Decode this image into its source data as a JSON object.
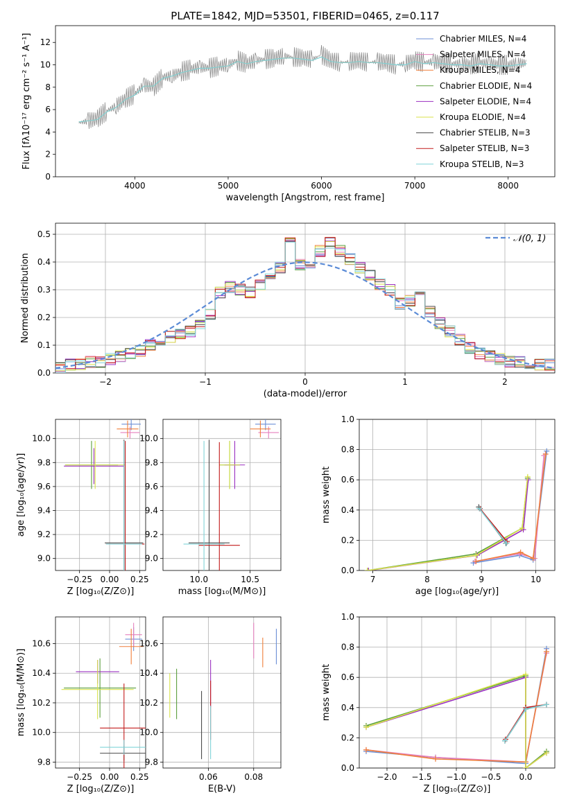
{
  "figure": {
    "title": "PLATE=1842, MJD=53501, FIBERID=0465, z=0.117"
  },
  "models": [
    {
      "name": "Chabrier MILES",
      "n": "4",
      "color": "#6b8fd6"
    },
    {
      "name": "Salpeter MILES",
      "n": "4",
      "color": "#e57fbd"
    },
    {
      "name": "Kroupa MILES",
      "n": "4",
      "color": "#f07f3a"
    },
    {
      "name": "Chabrier ELODIE",
      "n": "4",
      "color": "#5a9e3b"
    },
    {
      "name": "Salpeter ELODIE",
      "n": "4",
      "color": "#9a2fc0"
    },
    {
      "name": "Kroupa ELODIE",
      "n": "4",
      "color": "#d8e24a"
    },
    {
      "name": "Chabrier STELIB",
      "n": "3",
      "color": "#4a4a4a"
    },
    {
      "name": "Salpeter STELIB",
      "n": "3",
      "color": "#c21a1a"
    },
    {
      "name": "Kroupa STELIB",
      "n": "3",
      "color": "#7fd3d8"
    }
  ],
  "chart_data": [
    {
      "id": "spectrum",
      "type": "line",
      "xlabel": "wavelength [Angstrom, rest frame]",
      "ylabel": "Flux [fλ10⁻¹⁷ erg cm⁻² s⁻¹ A⁻¹]",
      "xlim": [
        3150,
        8500
      ],
      "ylim": [
        0,
        13.5
      ],
      "xticks": [
        "4000",
        "5000",
        "6000",
        "7000",
        "8000"
      ],
      "yticks": [
        "0",
        "2",
        "4",
        "6",
        "8",
        "10",
        "12"
      ],
      "legend_labels": [
        "Chabrier MILES, N_SSP=4",
        "Salpeter MILES, N_SSP=4",
        "Kroupa MILES, N_SSP=4",
        "Chabrier ELODIE, N_SSP=4",
        "Salpeter ELODIE, N_SSP=4",
        "Kroupa ELODIE, N_SSP=4",
        "Chabrier STELIB, N_SSP=3",
        "Salpeter STELIB, N_SSP=3",
        "Kroupa STELIB, N_SSP=3"
      ],
      "legend_position": "upper-right",
      "data_series": {
        "name": "data",
        "color": "#808080",
        "x": [
          3400,
          3500,
          3600,
          3700,
          3800,
          3900,
          4000,
          4100,
          4200,
          4300,
          4400,
          4500,
          4600,
          4700,
          4800,
          4900,
          5000,
          5100,
          5200,
          5300,
          5400,
          5500,
          5600,
          5700,
          5800,
          5900,
          6000,
          6100,
          6200,
          6300,
          6400,
          6500,
          6600,
          6700,
          6800,
          6900,
          7000,
          7100,
          7200,
          7300,
          7400,
          7500,
          7600,
          7700,
          7800,
          7900,
          8000,
          8100,
          8200
        ],
        "y": [
          4.8,
          5.0,
          5.2,
          5.9,
          6.3,
          7.0,
          7.4,
          8.2,
          8.0,
          8.9,
          9.0,
          9.4,
          9.6,
          9.8,
          9.7,
          9.9,
          10.0,
          10.4,
          10.1,
          10.4,
          10.5,
          10.6,
          10.8,
          10.7,
          10.6,
          10.5,
          10.9,
          10.4,
          10.2,
          10.3,
          10.4,
          10.2,
          10.3,
          10.2,
          10.0,
          10.1,
          10.4,
          10.2,
          10.3,
          10.2,
          10.1,
          10.1,
          10.0,
          10.2,
          10.1,
          10.0,
          10.0,
          10.1,
          10.2
        ]
      },
      "model_series": {
        "name": "models",
        "color": "#7fd3d8",
        "x": [
          3400,
          3500,
          3600,
          3700,
          3800,
          3900,
          4000,
          4100,
          4200,
          4300,
          4400,
          4500,
          4600,
          4700,
          4800,
          4900,
          5000,
          5100,
          5200,
          5300,
          5400,
          5500,
          5600,
          5700,
          5800,
          5900,
          6000,
          6100,
          6200,
          6300,
          6400,
          6500,
          6600,
          6700,
          6800,
          6900,
          7000,
          7100,
          7200,
          7300,
          7400,
          7500,
          7600,
          7700,
          7800,
          7900,
          8000,
          8100,
          8200
        ],
        "y": [
          4.9,
          5.0,
          5.1,
          5.8,
          6.2,
          6.9,
          7.3,
          8.1,
          8.1,
          8.8,
          9.0,
          9.3,
          9.5,
          9.7,
          9.7,
          9.8,
          9.9,
          10.3,
          10.1,
          10.3,
          10.4,
          10.5,
          10.6,
          10.6,
          10.5,
          10.4,
          10.7,
          10.3,
          10.2,
          10.2,
          10.3,
          10.2,
          10.2,
          10.1,
          10.0,
          10.0,
          10.3,
          10.1,
          10.2,
          10.1,
          10.0,
          10.0,
          9.9,
          10.1,
          10.0,
          9.9,
          9.9,
          10.0,
          10.1
        ]
      }
    },
    {
      "id": "residuals",
      "type": "histogram",
      "xlabel": "(data-model)/error",
      "ylabel": "Normed distribution",
      "xlim": [
        -2.5,
        2.5
      ],
      "ylim": [
        0,
        0.54
      ],
      "xticks": [
        "−2",
        "−1",
        "0",
        "1",
        "2"
      ],
      "yticks": [
        "0.0",
        "0.1",
        "0.2",
        "0.3",
        "0.4",
        "0.5"
      ],
      "legend_labels": [
        "𝒩(0, 1)"
      ],
      "legend_position": "upper-right",
      "bin_edges": [
        -2.5,
        -2.4,
        -2.3,
        -2.2,
        -2.1,
        -2.0,
        -1.9,
        -1.8,
        -1.7,
        -1.6,
        -1.5,
        -1.4,
        -1.3,
        -1.2,
        -1.1,
        -1.0,
        -0.9,
        -0.8,
        -0.7,
        -0.6,
        -0.5,
        -0.4,
        -0.3,
        -0.2,
        -0.1,
        0.0,
        0.1,
        0.2,
        0.3,
        0.4,
        0.5,
        0.6,
        0.7,
        0.8,
        0.9,
        1.0,
        1.1,
        1.2,
        1.3,
        1.4,
        1.5,
        1.6,
        1.7,
        1.8,
        1.9,
        2.0,
        2.1,
        2.2,
        2.3,
        2.4,
        2.5
      ],
      "hist_values": [
        0.02,
        0.03,
        0.03,
        0.04,
        0.04,
        0.05,
        0.06,
        0.07,
        0.08,
        0.1,
        0.12,
        0.13,
        0.14,
        0.15,
        0.17,
        0.21,
        0.29,
        0.31,
        0.3,
        0.29,
        0.32,
        0.36,
        0.38,
        0.48,
        0.39,
        0.37,
        0.44,
        0.47,
        0.44,
        0.41,
        0.38,
        0.35,
        0.32,
        0.3,
        0.25,
        0.26,
        0.28,
        0.22,
        0.18,
        0.15,
        0.12,
        0.09,
        0.07,
        0.06,
        0.05,
        0.04,
        0.04,
        0.03,
        0.03,
        0.03
      ],
      "normal_series": {
        "name": "𝒩(0, 1)",
        "color": "#5b8bd6"
      }
    },
    {
      "id": "age-vs-Z",
      "type": "errorbar",
      "xlabel": "Z [log₁₀(Z/Z⊙)]",
      "ylabel": "age  [log₁₀(age/yr)]",
      "xlim": [
        -0.45,
        0.3
      ],
      "ylim": [
        8.9,
        10.16
      ],
      "xticks": [
        "−0.25",
        "0.00",
        "0.25"
      ],
      "yticks": [
        "9.0",
        "9.2",
        "9.4",
        "9.6",
        "9.8",
        "10.0"
      ],
      "points": [
        {
          "x": 0.18,
          "y": 10.12,
          "xerr": 0.08,
          "yerr": 0.05,
          "model": 0
        },
        {
          "x": 0.17,
          "y": 10.05,
          "xerr": 0.08,
          "yerr": 0.05,
          "model": 1
        },
        {
          "x": 0.15,
          "y": 10.08,
          "xerr": 0.09,
          "yerr": 0.07,
          "model": 2
        },
        {
          "x": -0.15,
          "y": 9.78,
          "xerr": 0.22,
          "yerr": 0.2,
          "model": 3
        },
        {
          "x": -0.13,
          "y": 9.77,
          "xerr": 0.25,
          "yerr": 0.15,
          "model": 4
        },
        {
          "x": -0.12,
          "y": 9.78,
          "xerr": 0.25,
          "yerr": 0.2,
          "model": 5
        },
        {
          "x": 0.12,
          "y": 9.13,
          "xerr": 0.16,
          "yerr": 0.86,
          "model": 6
        },
        {
          "x": 0.13,
          "y": 9.12,
          "xerr": 0.16,
          "yerr": 0.86,
          "model": 7
        },
        {
          "x": 0.12,
          "y": 9.12,
          "xerr": 0.15,
          "yerr": 0.86,
          "model": 8
        }
      ]
    },
    {
      "id": "age-vs-mass",
      "type": "errorbar",
      "xlabel": "mass [log₁₀(M/M⊙)]",
      "ylabel": "",
      "xlim": [
        9.65,
        10.8
      ],
      "ylim": [
        8.9,
        10.16
      ],
      "xticks": [
        "10.0",
        "10.5"
      ],
      "yticks": [
        "9.0",
        "9.2",
        "9.4",
        "9.6",
        "9.8",
        "10.0"
      ],
      "points": [
        {
          "x": 10.65,
          "y": 10.12,
          "xerr": 0.1,
          "yerr": 0.05,
          "model": 0
        },
        {
          "x": 10.68,
          "y": 10.05,
          "xerr": 0.1,
          "yerr": 0.05,
          "model": 1
        },
        {
          "x": 10.6,
          "y": 10.08,
          "xerr": 0.1,
          "yerr": 0.07,
          "model": 2
        },
        {
          "x": 10.3,
          "y": 9.78,
          "xerr": 0.1,
          "yerr": 0.2,
          "model": 3
        },
        {
          "x": 10.35,
          "y": 9.78,
          "xerr": 0.1,
          "yerr": 0.2,
          "model": 4
        },
        {
          "x": 10.3,
          "y": 9.78,
          "xerr": 0.1,
          "yerr": 0.2,
          "model": 5
        },
        {
          "x": 10.1,
          "y": 9.13,
          "xerr": 0.2,
          "yerr": 0.86,
          "model": 6
        },
        {
          "x": 10.2,
          "y": 9.11,
          "xerr": 0.2,
          "yerr": 0.86,
          "model": 7
        },
        {
          "x": 10.05,
          "y": 9.12,
          "xerr": 0.2,
          "yerr": 0.86,
          "model": 8
        }
      ]
    },
    {
      "id": "weight-vs-age",
      "type": "line",
      "xlabel": "age  [log₁₀(age/yr)]",
      "ylabel": "mass weight",
      "xlim": [
        6.75,
        10.35
      ],
      "ylim": [
        0,
        1.0
      ],
      "xticks": [
        "7",
        "8",
        "9",
        "10"
      ],
      "yticks": [
        "0.0",
        "0.2",
        "0.4",
        "0.6",
        "0.8",
        "1.0"
      ],
      "series": [
        {
          "model": 0,
          "x": [
            8.85,
            9.7,
            9.95,
            10.2
          ],
          "y": [
            0.05,
            0.1,
            0.07,
            0.79
          ]
        },
        {
          "model": 1,
          "x": [
            8.88,
            9.7,
            9.98,
            10.15
          ],
          "y": [
            0.06,
            0.11,
            0.08,
            0.76
          ]
        },
        {
          "model": 2,
          "x": [
            8.9,
            9.72,
            9.95,
            10.18
          ],
          "y": [
            0.06,
            0.12,
            0.08,
            0.77
          ]
        },
        {
          "model": 3,
          "x": [
            6.9,
            8.9,
            9.75,
            9.85
          ],
          "y": [
            0.0,
            0.11,
            0.28,
            0.61
          ]
        },
        {
          "model": 4,
          "x": [
            6.92,
            8.92,
            9.77,
            9.86
          ],
          "y": [
            0.0,
            0.1,
            0.27,
            0.6
          ]
        },
        {
          "model": 5,
          "x": [
            6.9,
            8.9,
            9.75,
            9.85
          ],
          "y": [
            0.0,
            0.1,
            0.28,
            0.62
          ]
        },
        {
          "model": 6,
          "x": [
            8.95,
            9.45
          ],
          "y": [
            0.42,
            0.18
          ]
        },
        {
          "model": 7,
          "x": [
            8.97,
            9.47
          ],
          "y": [
            0.41,
            0.19
          ]
        },
        {
          "model": 8,
          "x": [
            8.96,
            9.46
          ],
          "y": [
            0.41,
            0.18
          ]
        }
      ]
    },
    {
      "id": "mass-vs-Z",
      "type": "errorbar",
      "xlabel": "Z [log₁₀(Z/Z⊙)]",
      "ylabel": "mass [log₁₀(M/M⊙)]",
      "xlim": [
        -0.45,
        0.3
      ],
      "ylim": [
        9.76,
        10.78
      ],
      "xticks": [
        "−0.25",
        "0.00",
        "0.25"
      ],
      "yticks": [
        "9.8",
        "10.0",
        "10.2",
        "10.4",
        "10.6"
      ],
      "points": [
        {
          "x": 0.2,
          "y": 10.63,
          "xerr": 0.07,
          "yerr": 0.08,
          "model": 0
        },
        {
          "x": 0.2,
          "y": 10.66,
          "xerr": 0.07,
          "yerr": 0.08,
          "model": 1
        },
        {
          "x": 0.18,
          "y": 10.58,
          "xerr": 0.1,
          "yerr": 0.12,
          "model": 2
        },
        {
          "x": -0.08,
          "y": 10.3,
          "xerr": 0.3,
          "yerr": 0.2,
          "model": 3
        },
        {
          "x": -0.1,
          "y": 10.41,
          "xerr": 0.18,
          "yerr": 0.08,
          "model": 4
        },
        {
          "x": -0.1,
          "y": 10.29,
          "xerr": 0.3,
          "yerr": 0.2,
          "model": 5
        },
        {
          "x": 0.12,
          "y": 9.86,
          "xerr": 0.2,
          "yerr": 0.05,
          "model": 6
        },
        {
          "x": 0.12,
          "y": 10.03,
          "xerr": 0.2,
          "yerr": 0.3,
          "model": 7
        },
        {
          "x": 0.12,
          "y": 9.9,
          "xerr": 0.2,
          "yerr": 0.05,
          "model": 8
        }
      ]
    },
    {
      "id": "mass-vs-EBV",
      "type": "errorbar",
      "xlabel": "E(B-V)",
      "ylabel": "",
      "xlim": [
        0.04,
        0.092
      ],
      "ylim": [
        9.76,
        10.78
      ],
      "xticks": [
        "0.06",
        "0.08"
      ],
      "yticks": [
        "9.8",
        "10.0",
        "10.2",
        "10.4",
        "10.6"
      ],
      "points": [
        {
          "x": 0.09,
          "y": 10.58,
          "xerr": 0.0,
          "yerr": 0.12,
          "model": 0
        },
        {
          "x": 0.08,
          "y": 10.62,
          "xerr": 0.0,
          "yerr": 0.12,
          "model": 1
        },
        {
          "x": 0.084,
          "y": 10.54,
          "xerr": 0.0,
          "yerr": 0.1,
          "model": 2
        },
        {
          "x": 0.046,
          "y": 10.26,
          "xerr": 0.0,
          "yerr": 0.17,
          "model": 3
        },
        {
          "x": 0.061,
          "y": 10.33,
          "xerr": 0.0,
          "yerr": 0.16,
          "model": 4
        },
        {
          "x": 0.043,
          "y": 10.25,
          "xerr": 0.0,
          "yerr": 0.15,
          "model": 5
        },
        {
          "x": 0.057,
          "y": 10.05,
          "xerr": 0.0,
          "yerr": 0.23,
          "model": 6
        },
        {
          "x": 0.061,
          "y": 10.15,
          "xerr": 0.0,
          "yerr": 0.2,
          "model": 7
        },
        {
          "x": 0.061,
          "y": 10.0,
          "xerr": 0.0,
          "yerr": 0.18,
          "model": 8
        }
      ]
    },
    {
      "id": "weight-vs-Z",
      "type": "line",
      "xlabel": "Z [log₁₀(Z/Z⊙)]",
      "ylabel": "mass weight",
      "xlim": [
        -2.4,
        0.42
      ],
      "ylim": [
        0,
        1.0
      ],
      "xticks": [
        "−2.0",
        "−1.5",
        "−1.0",
        "−0.5",
        "0.0"
      ],
      "yticks": [
        "0.0",
        "0.2",
        "0.4",
        "0.6",
        "0.8",
        "1.0"
      ],
      "series": [
        {
          "model": 0,
          "x": [
            -2.3,
            -1.3,
            0.0,
            0.3
          ],
          "y": [
            0.11,
            0.07,
            0.03,
            0.79
          ]
        },
        {
          "model": 1,
          "x": [
            -2.3,
            -1.3,
            0.0,
            0.3
          ],
          "y": [
            0.12,
            0.07,
            0.04,
            0.76
          ]
        },
        {
          "model": 2,
          "x": [
            -2.3,
            -1.3,
            0.0,
            0.3
          ],
          "y": [
            0.12,
            0.06,
            0.04,
            0.77
          ]
        },
        {
          "model": 3,
          "x": [
            -2.3,
            0.0,
            0.0,
            0.3
          ],
          "y": [
            0.28,
            0.61,
            0.0,
            0.11
          ]
        },
        {
          "model": 4,
          "x": [
            -2.3,
            0.0,
            0.0,
            0.3
          ],
          "y": [
            0.27,
            0.6,
            0.0,
            0.1
          ]
        },
        {
          "model": 5,
          "x": [
            -2.3,
            0.0,
            0.0,
            0.3
          ],
          "y": [
            0.27,
            0.62,
            0.0,
            0.1
          ]
        },
        {
          "model": 6,
          "x": [
            -0.3,
            0.0,
            0.3
          ],
          "y": [
            0.18,
            0.39,
            0.42
          ]
        },
        {
          "model": 7,
          "x": [
            -0.29,
            0.0,
            0.3
          ],
          "y": [
            0.19,
            0.4,
            0.42
          ]
        },
        {
          "model": 8,
          "x": [
            -0.3,
            0.0,
            0.3
          ],
          "y": [
            0.18,
            0.39,
            0.42
          ]
        }
      ]
    }
  ]
}
